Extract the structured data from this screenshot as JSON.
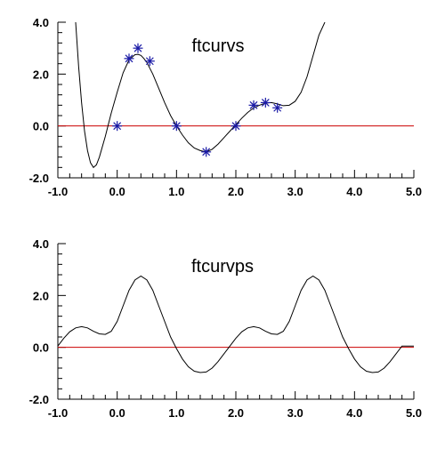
{
  "chart_data": [
    {
      "type": "line",
      "title": "ftcurvs",
      "xlim": [
        -1.0,
        5.0
      ],
      "ylim": [
        -2.0,
        4.0
      ],
      "x_ticks": [
        -1.0,
        0.0,
        1.0,
        2.0,
        3.0,
        4.0,
        5.0
      ],
      "x_tick_labels": [
        "-1.0",
        "0.0",
        "1.0",
        "2.0",
        "3.0",
        "4.0",
        "5.0"
      ],
      "y_ticks": [
        -2.0,
        0.0,
        2.0,
        4.0
      ],
      "y_tick_labels": [
        "-2.0",
        "0.0",
        "2.0",
        "4.0"
      ],
      "x_minor_step": 0.2,
      "y_minor_step": 0.4,
      "grid": false,
      "colors": {
        "curve": "#000000",
        "markers": "#1a1aa6",
        "reference_line": "#cc0000"
      },
      "reference_line_y": 0.0,
      "series": [
        {
          "style": "line",
          "x": [
            -0.7,
            -0.65,
            -0.6,
            -0.55,
            -0.5,
            -0.45,
            -0.4,
            -0.35,
            -0.3,
            -0.2,
            -0.1,
            0.0,
            0.1,
            0.2,
            0.3,
            0.35,
            0.4,
            0.45,
            0.5,
            0.6,
            0.7,
            0.8,
            0.9,
            1.0,
            1.1,
            1.2,
            1.3,
            1.4,
            1.5,
            1.6,
            1.7,
            1.8,
            1.9,
            2.0,
            2.1,
            2.2,
            2.3,
            2.4,
            2.5,
            2.6,
            2.7,
            2.8,
            2.9,
            3.0,
            3.1,
            3.2,
            3.3,
            3.4,
            3.5
          ],
          "y": [
            4.0,
            2.3,
            0.9,
            -0.2,
            -0.95,
            -1.42,
            -1.6,
            -1.5,
            -1.2,
            -0.4,
            0.5,
            1.3,
            2.05,
            2.55,
            2.75,
            2.76,
            2.72,
            2.6,
            2.45,
            2.0,
            1.45,
            0.9,
            0.4,
            0.0,
            -0.35,
            -0.65,
            -0.85,
            -0.95,
            -1.0,
            -0.9,
            -0.7,
            -0.45,
            -0.2,
            0.05,
            0.3,
            0.52,
            0.7,
            0.8,
            0.88,
            0.9,
            0.85,
            0.78,
            0.8,
            0.95,
            1.3,
            1.9,
            2.7,
            3.5,
            4.0
          ]
        },
        {
          "style": "marker",
          "x": [
            0.0,
            0.2,
            0.35,
            0.55,
            1.0,
            1.5,
            2.0,
            2.3,
            2.5,
            2.7
          ],
          "y": [
            0.0,
            2.6,
            3.0,
            2.5,
            0.0,
            -1.0,
            0.0,
            0.8,
            0.9,
            0.7
          ]
        }
      ]
    },
    {
      "type": "line",
      "title": "ftcurvps",
      "xlim": [
        -1.0,
        5.0
      ],
      "ylim": [
        -2.0,
        4.0
      ],
      "x_ticks": [
        -1.0,
        0.0,
        1.0,
        2.0,
        3.0,
        4.0,
        5.0
      ],
      "x_tick_labels": [
        "-1.0",
        "0.0",
        "1.0",
        "2.0",
        "3.0",
        "4.0",
        "5.0"
      ],
      "y_ticks": [
        -2.0,
        0.0,
        2.0,
        4.0
      ],
      "y_tick_labels": [
        "-2.0",
        "0.0",
        "2.0",
        "4.0"
      ],
      "x_minor_step": 0.2,
      "y_minor_step": 0.4,
      "grid": false,
      "colors": {
        "curve": "#000000",
        "reference_line": "#cc0000"
      },
      "reference_line_y": 0.0,
      "series": [
        {
          "style": "line",
          "x": [
            -1.0,
            -0.9,
            -0.8,
            -0.7,
            -0.6,
            -0.5,
            -0.4,
            -0.3,
            -0.2,
            -0.1,
            0.0,
            0.1,
            0.2,
            0.3,
            0.4,
            0.5,
            0.6,
            0.7,
            0.8,
            0.9,
            1.0,
            1.1,
            1.2,
            1.3,
            1.4,
            1.5,
            1.6,
            1.7,
            1.8,
            1.9,
            2.0,
            2.1,
            2.2,
            2.3,
            2.4,
            2.5,
            2.6,
            2.7,
            2.8,
            2.9,
            3.0,
            3.1,
            3.2,
            3.3,
            3.4,
            3.5,
            3.6,
            3.7,
            3.8,
            3.9,
            4.0,
            4.1,
            4.2,
            4.3,
            4.4,
            4.5,
            4.6,
            4.7,
            4.8,
            4.9,
            5.0
          ],
          "y": [
            0.05,
            0.35,
            0.6,
            0.75,
            0.8,
            0.75,
            0.62,
            0.52,
            0.5,
            0.62,
            1.0,
            1.6,
            2.2,
            2.6,
            2.75,
            2.6,
            2.2,
            1.6,
            1.0,
            0.4,
            -0.05,
            -0.45,
            -0.75,
            -0.92,
            -0.97,
            -0.95,
            -0.8,
            -0.55,
            -0.25,
            0.05,
            0.35,
            0.6,
            0.75,
            0.8,
            0.75,
            0.62,
            0.52,
            0.5,
            0.62,
            1.0,
            1.6,
            2.2,
            2.6,
            2.75,
            2.6,
            2.2,
            1.6,
            1.0,
            0.4,
            -0.05,
            -0.45,
            -0.75,
            -0.92,
            -0.97,
            -0.95,
            -0.8,
            -0.55,
            -0.25,
            0.05,
            0.05,
            0.05
          ]
        }
      ]
    }
  ]
}
